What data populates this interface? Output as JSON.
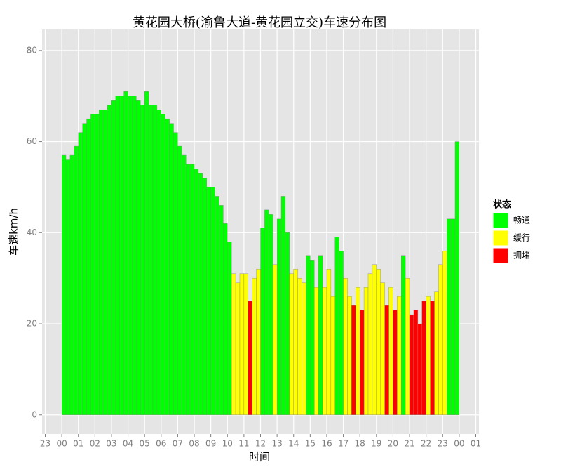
{
  "chart_data": {
    "type": "bar",
    "title": "黄花园大桥(渝鲁大道-黄花园立交)车速分布图",
    "x_label": "时间",
    "y_label": "车速km/h",
    "legend_title": "状态",
    "legend_position": "right",
    "grid": true,
    "xlim": [
      -1.19,
      25.19
    ],
    "ylim": [
      -4.2,
      84.6
    ],
    "xticks": [
      {
        "value": -1,
        "label": "23"
      },
      {
        "value": 0,
        "label": "00"
      },
      {
        "value": 1,
        "label": "01"
      },
      {
        "value": 2,
        "label": "02"
      },
      {
        "value": 3,
        "label": "03"
      },
      {
        "value": 4,
        "label": "04"
      },
      {
        "value": 5,
        "label": "05"
      },
      {
        "value": 6,
        "label": "06"
      },
      {
        "value": 7,
        "label": "07"
      },
      {
        "value": 8,
        "label": "08"
      },
      {
        "value": 9,
        "label": "09"
      },
      {
        "value": 10,
        "label": "10"
      },
      {
        "value": 11,
        "label": "11"
      },
      {
        "value": 12,
        "label": "12"
      },
      {
        "value": 13,
        "label": "13"
      },
      {
        "value": 14,
        "label": "14"
      },
      {
        "value": 15,
        "label": "15"
      },
      {
        "value": 16,
        "label": "16"
      },
      {
        "value": 17,
        "label": "17"
      },
      {
        "value": 18,
        "label": "18"
      },
      {
        "value": 19,
        "label": "19"
      },
      {
        "value": 20,
        "label": "20"
      },
      {
        "value": 21,
        "label": "21"
      },
      {
        "value": 22,
        "label": "22"
      },
      {
        "value": 23,
        "label": "23"
      },
      {
        "value": 24,
        "label": "00"
      },
      {
        "value": 25,
        "label": "01"
      }
    ],
    "yticks": [
      0,
      20,
      40,
      60,
      80
    ],
    "x": [
      0,
      0.25,
      0.5,
      0.75,
      1,
      1.25,
      1.5,
      1.75,
      2,
      2.25,
      2.5,
      2.75,
      3,
      3.25,
      3.5,
      3.75,
      4,
      4.25,
      4.5,
      4.75,
      5,
      5.25,
      5.5,
      5.75,
      6,
      6.25,
      6.5,
      6.75,
      7,
      7.25,
      7.5,
      7.75,
      8,
      8.25,
      8.5,
      8.75,
      9,
      9.25,
      9.5,
      9.75,
      10,
      10.25,
      10.5,
      10.75,
      11,
      11.25,
      11.5,
      11.75,
      12,
      12.25,
      12.5,
      12.75,
      13,
      13.25,
      13.5,
      13.75,
      14,
      14.25,
      14.5,
      14.75,
      15,
      15.25,
      15.5,
      15.75,
      16,
      16.25,
      16.5,
      16.75,
      17,
      17.25,
      17.5,
      17.75,
      18,
      18.25,
      18.5,
      18.75,
      19,
      19.25,
      19.5,
      19.75,
      20,
      20.25,
      20.5,
      20.75,
      21,
      21.25,
      21.5,
      21.75,
      22,
      22.25,
      22.5,
      22.75,
      23,
      23.25,
      23.5,
      23.75
    ],
    "series": [
      {
        "name": "畅通",
        "color": "#00ff00",
        "values": [
          57,
          56,
          57,
          59,
          62,
          64,
          65,
          66,
          66,
          67,
          67,
          68,
          69,
          70,
          70,
          71,
          70,
          70,
          69,
          68,
          71,
          68,
          68,
          67,
          66,
          65,
          64,
          62,
          59,
          57,
          55,
          55,
          54,
          53,
          52,
          50,
          50,
          48,
          46,
          42,
          38,
          null,
          null,
          null,
          null,
          null,
          null,
          null,
          41,
          45,
          44,
          null,
          43,
          48,
          40,
          null,
          null,
          null,
          null,
          35,
          34,
          null,
          35,
          null,
          null,
          null,
          39,
          36,
          null,
          null,
          null,
          null,
          null,
          null,
          null,
          null,
          null,
          null,
          null,
          null,
          null,
          null,
          35,
          null,
          null,
          null,
          null,
          null,
          null,
          null,
          null,
          null,
          null,
          43,
          43,
          60
        ]
      },
      {
        "name": "缓行",
        "color": "#ffff00",
        "values": [
          null,
          null,
          null,
          null,
          null,
          null,
          null,
          null,
          null,
          null,
          null,
          null,
          null,
          null,
          null,
          null,
          null,
          null,
          null,
          null,
          null,
          null,
          null,
          null,
          null,
          null,
          null,
          null,
          null,
          null,
          null,
          null,
          null,
          null,
          null,
          null,
          null,
          null,
          null,
          null,
          null,
          31,
          29,
          31,
          31,
          null,
          30,
          32,
          null,
          null,
          null,
          33,
          null,
          null,
          null,
          31,
          32,
          30,
          29,
          null,
          null,
          28,
          null,
          28,
          32,
          26,
          null,
          null,
          30,
          26,
          null,
          28,
          null,
          28,
          31,
          33,
          32,
          29,
          null,
          28,
          null,
          26,
          null,
          30,
          null,
          null,
          null,
          null,
          26,
          null,
          27,
          33,
          36,
          null,
          null,
          null
        ]
      },
      {
        "name": "拥堵",
        "color": "#ff0000",
        "values": [
          null,
          null,
          null,
          null,
          null,
          null,
          null,
          null,
          null,
          null,
          null,
          null,
          null,
          null,
          null,
          null,
          null,
          null,
          null,
          null,
          null,
          null,
          null,
          null,
          null,
          null,
          null,
          null,
          null,
          null,
          null,
          null,
          null,
          null,
          null,
          null,
          null,
          null,
          null,
          null,
          null,
          null,
          null,
          null,
          null,
          25,
          null,
          null,
          null,
          null,
          null,
          null,
          null,
          null,
          null,
          null,
          null,
          null,
          null,
          null,
          null,
          null,
          null,
          null,
          null,
          null,
          null,
          null,
          null,
          null,
          24,
          null,
          23,
          null,
          null,
          null,
          null,
          null,
          24,
          null,
          23,
          null,
          null,
          null,
          22,
          23,
          20,
          25,
          null,
          25,
          null,
          null,
          null,
          null,
          null,
          null
        ]
      }
    ]
  }
}
